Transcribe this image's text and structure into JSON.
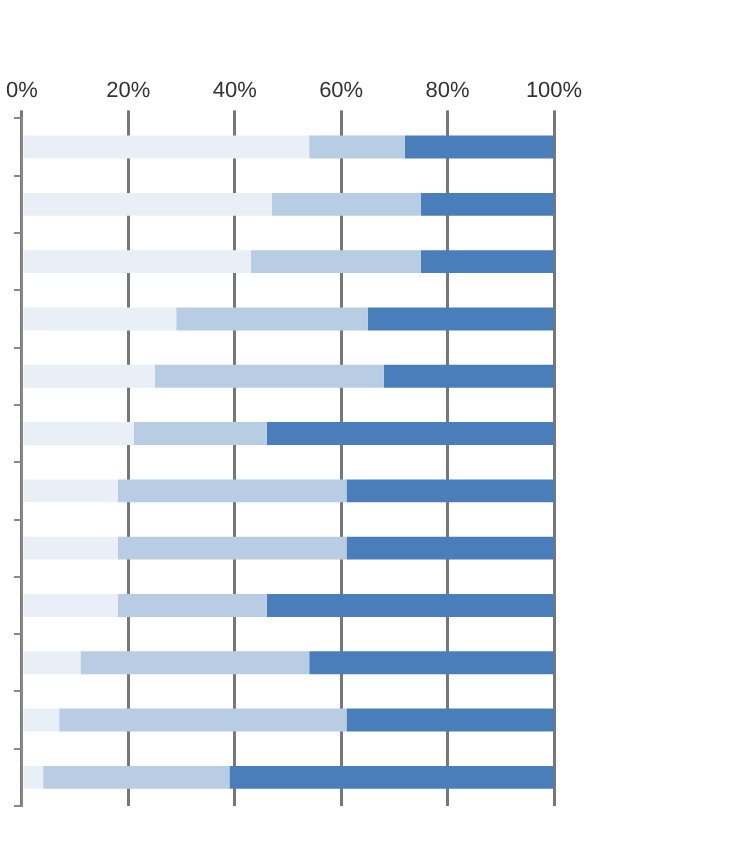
{
  "chart_data": {
    "type": "bar",
    "orientation": "horizontal",
    "stacked": true,
    "categories": [
      null,
      null,
      null,
      null,
      null,
      null,
      null,
      null,
      null,
      null,
      null,
      null
    ],
    "series": [
      {
        "color": "#e9eff7",
        "values": [
          54,
          47,
          43,
          29,
          25,
          21,
          18,
          18,
          18,
          11,
          7,
          4
        ]
      },
      {
        "color": "#b8cce4",
        "values": [
          18,
          28,
          32,
          36,
          43,
          25,
          43,
          43,
          28,
          43,
          54,
          35
        ]
      },
      {
        "color": "#4a7ebb",
        "values": [
          28,
          25,
          25,
          35,
          32,
          54,
          39,
          39,
          54,
          46,
          39,
          61
        ]
      }
    ],
    "xlim": [
      0,
      100
    ],
    "xticks": [
      {
        "value": 0,
        "label": "0%"
      },
      {
        "value": 20,
        "label": "20%"
      },
      {
        "value": 40,
        "label": "40%"
      },
      {
        "value": 60,
        "label": "60%"
      },
      {
        "value": 80,
        "label": "80%"
      },
      {
        "value": 100,
        "label": "100%"
      }
    ],
    "grid": "x",
    "tick_labels": "x"
  }
}
